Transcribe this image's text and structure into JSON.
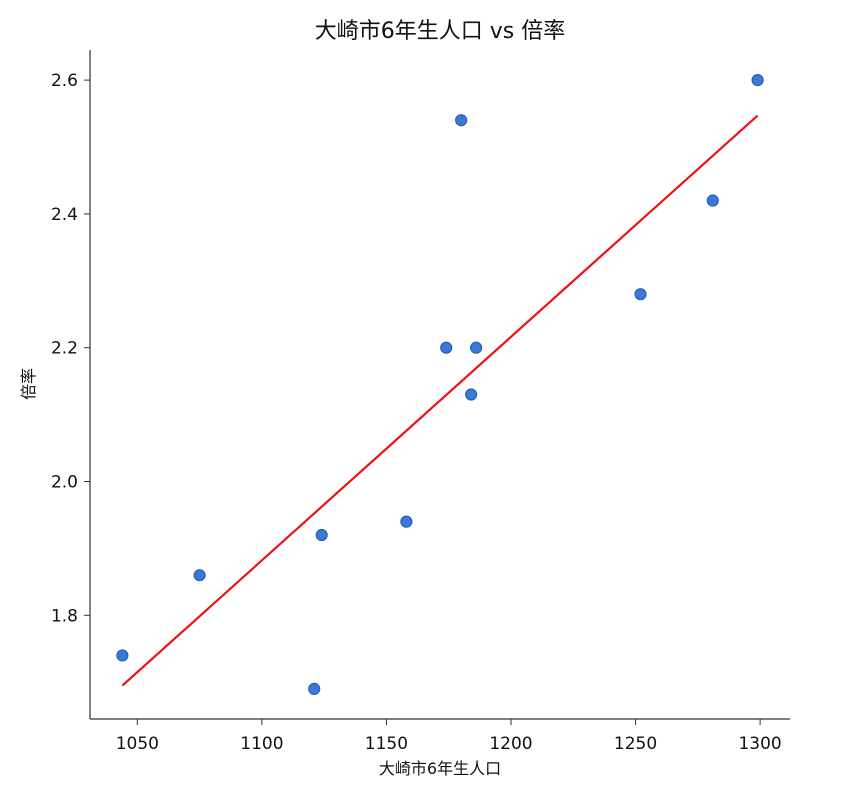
{
  "chart_data": {
    "type": "scatter",
    "title": "大崎市6年生人口 vs 倍率",
    "xlabel": "大崎市6年生人口",
    "ylabel": "倍率",
    "xlim": [
      1031,
      1312
    ],
    "ylim": [
      1.645,
      2.645
    ],
    "xticks": [
      1050,
      1100,
      1150,
      1200,
      1250,
      1300
    ],
    "yticks": [
      1.8,
      2.0,
      2.2,
      2.4,
      2.6
    ],
    "xtick_labels": [
      "1050",
      "1100",
      "1150",
      "1200",
      "1250",
      "1300"
    ],
    "ytick_labels": [
      "1.8",
      "2.0",
      "2.2",
      "2.4",
      "2.6"
    ],
    "grid": false,
    "points": [
      {
        "x": 1044,
        "y": 1.74
      },
      {
        "x": 1075,
        "y": 1.86
      },
      {
        "x": 1121,
        "y": 1.69
      },
      {
        "x": 1124,
        "y": 1.92
      },
      {
        "x": 1158,
        "y": 1.94
      },
      {
        "x": 1174,
        "y": 2.2
      },
      {
        "x": 1180,
        "y": 2.54
      },
      {
        "x": 1184,
        "y": 2.13
      },
      {
        "x": 1186,
        "y": 2.2
      },
      {
        "x": 1252,
        "y": 2.28
      },
      {
        "x": 1281,
        "y": 2.42
      },
      {
        "x": 1299,
        "y": 2.6
      }
    ],
    "trendline": {
      "x": [
        1044,
        1299
      ],
      "y": [
        1.695,
        2.547
      ]
    },
    "colors": {
      "points": "#3b78d8",
      "trendline": "#ee1111",
      "axes": "#333333"
    }
  }
}
